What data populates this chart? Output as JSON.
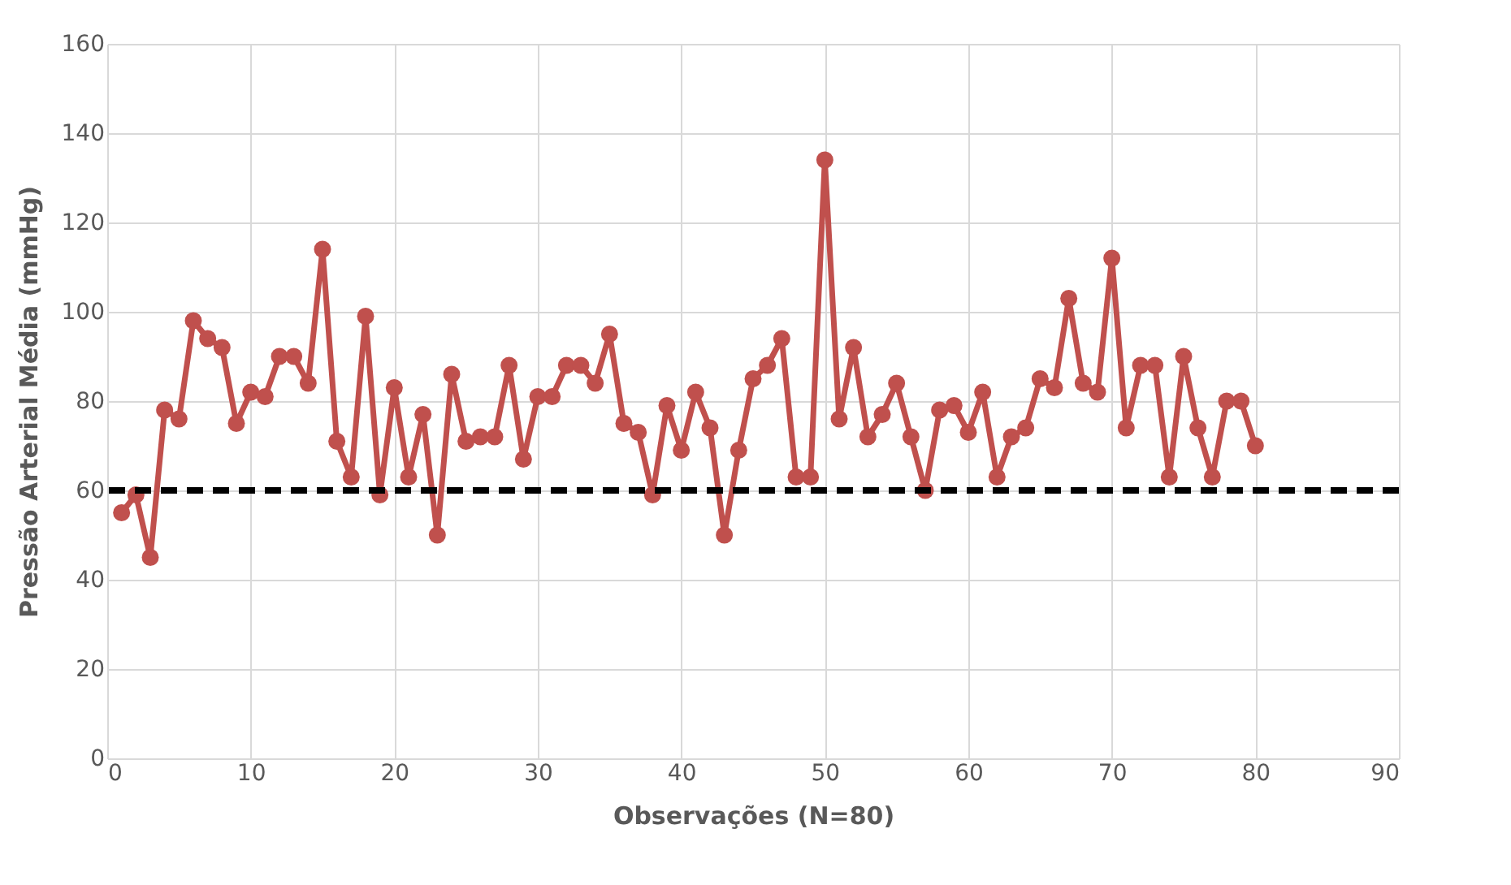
{
  "chart_data": {
    "type": "line",
    "xlabel": "Observações (N=80)",
    "ylabel": "Pressão Arterial Média (mmHg)",
    "x": [
      1,
      2,
      3,
      4,
      5,
      6,
      7,
      8,
      9,
      10,
      11,
      12,
      13,
      14,
      15,
      16,
      17,
      18,
      19,
      20,
      21,
      22,
      23,
      24,
      25,
      26,
      27,
      28,
      29,
      30,
      31,
      32,
      33,
      34,
      35,
      36,
      37,
      38,
      39,
      40,
      41,
      42,
      43,
      44,
      45,
      46,
      47,
      48,
      49,
      50,
      51,
      52,
      53,
      54,
      55,
      56,
      57,
      58,
      59,
      60,
      61,
      62,
      63,
      64,
      65,
      66,
      67,
      68,
      69,
      70,
      71,
      72,
      73,
      74,
      75,
      76,
      77,
      78,
      79,
      80
    ],
    "series": [
      {
        "color": "#c0504d",
        "values": [
          55,
          59,
          45,
          78,
          76,
          98,
          94,
          92,
          75,
          82,
          81,
          90,
          90,
          84,
          114,
          71,
          63,
          99,
          59,
          83,
          63,
          77,
          50,
          86,
          71,
          72,
          72,
          88,
          67,
          81,
          81,
          88,
          88,
          84,
          95,
          75,
          73,
          59,
          79,
          69,
          82,
          74,
          50,
          69,
          85,
          88,
          94,
          63,
          63,
          134,
          76,
          92,
          72,
          77,
          84,
          72,
          60,
          78,
          79,
          73,
          82,
          63,
          72,
          74,
          85,
          83,
          103,
          84,
          82,
          112,
          74,
          88,
          88,
          63,
          90,
          74,
          63,
          80,
          80,
          70
        ]
      }
    ],
    "xlim": [
      0,
      90
    ],
    "xticks": [
      0,
      10,
      20,
      30,
      40,
      50,
      60,
      70,
      80,
      90
    ],
    "ylim": [
      0,
      160
    ],
    "yticks": [
      0,
      20,
      40,
      60,
      80,
      100,
      120,
      140,
      160
    ],
    "grid": true,
    "marker": "circle",
    "line_style": "solid",
    "ref_lines": [
      {
        "axis": "y",
        "value": 60,
        "color": "#000000",
        "line_style": "dashed"
      }
    ]
  }
}
